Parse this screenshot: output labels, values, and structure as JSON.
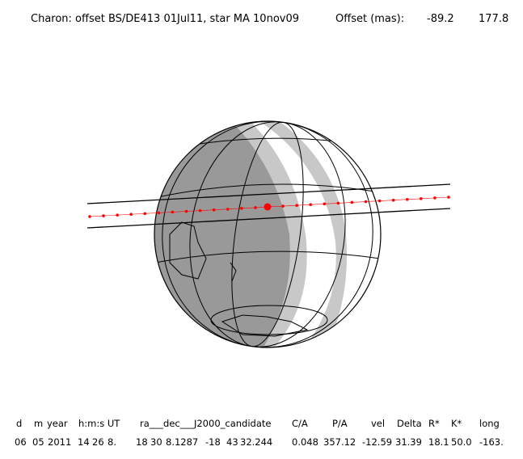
{
  "header": {
    "title": "Charon: offset BS/DE413 01Jul11, star MA 10nov09",
    "offset_label": "Offset (mas):",
    "offsets": [
      "-89.2",
      "177.8"
    ]
  },
  "table": {
    "columns": [
      "d",
      "m",
      "year",
      "h:m:s UT",
      "ra___dec___J2000_candidate",
      "C/A",
      "P/A",
      "vel",
      "Delta",
      "R*",
      "K*",
      "long"
    ],
    "row": [
      "06",
      "05",
      "2011",
      "14",
      "26",
      "8.",
      "18",
      "30",
      "8.1287",
      "-18",
      "43",
      "32.244",
      "0.048",
      "357.12",
      "-12.59",
      "31.39",
      "18.1",
      "50.0",
      "-163."
    ]
  }
}
